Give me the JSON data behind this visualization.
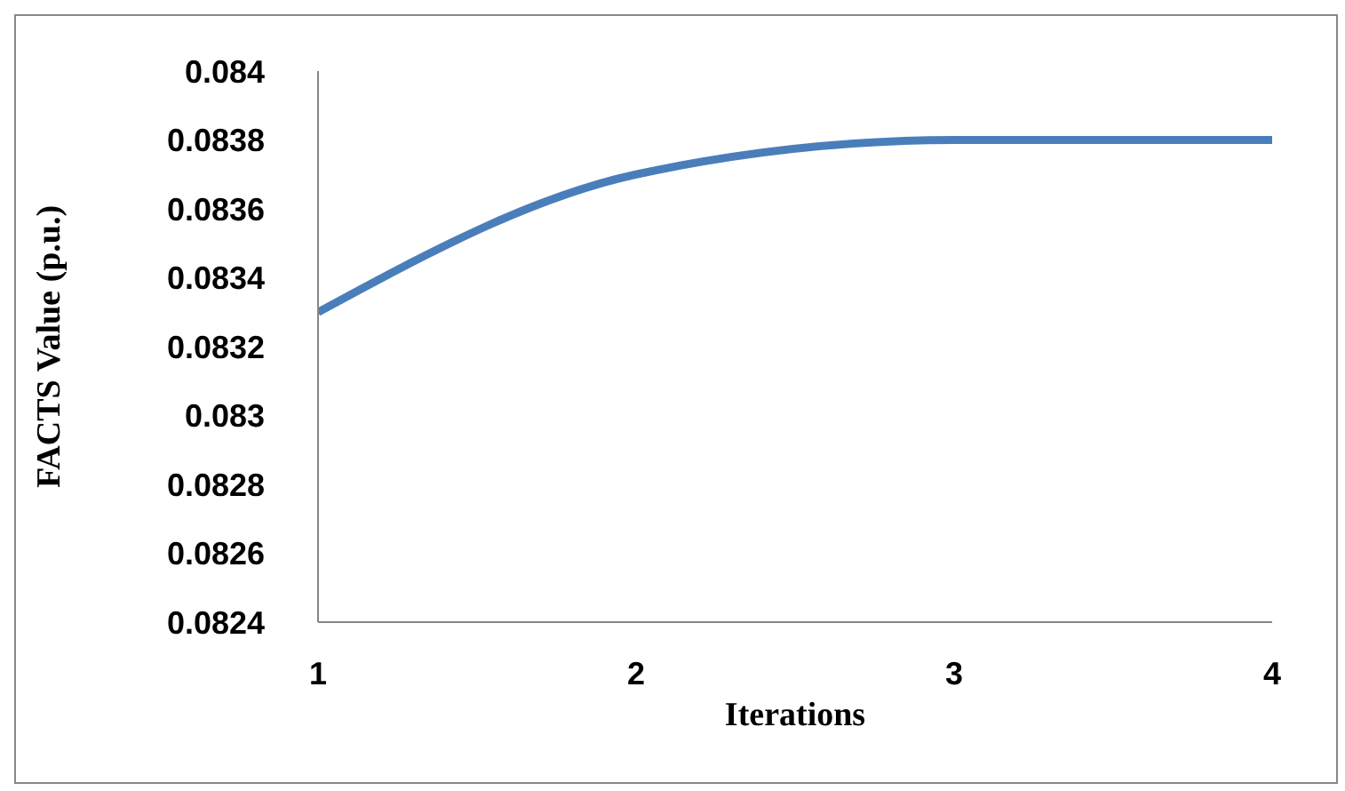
{
  "chart_data": {
    "type": "line",
    "xlabel": "Iterations",
    "ylabel": "FACTS Value (p.u.)",
    "x": [
      1,
      2,
      3,
      4
    ],
    "series": [
      {
        "color": "#4a7ebb",
        "values": [
          0.0833,
          0.0837,
          0.0838,
          0.0838
        ]
      }
    ],
    "xlim": [
      1,
      4
    ],
    "xticks": [
      1,
      2,
      3,
      4
    ],
    "ylim": [
      0.0824,
      0.084
    ],
    "yticks": [
      0.0824,
      0.0826,
      0.0828,
      0.083,
      0.0832,
      0.0834,
      0.0836,
      0.0838,
      0.084
    ],
    "grid": false,
    "legend": false,
    "marker": "none",
    "line_style": "solid"
  }
}
